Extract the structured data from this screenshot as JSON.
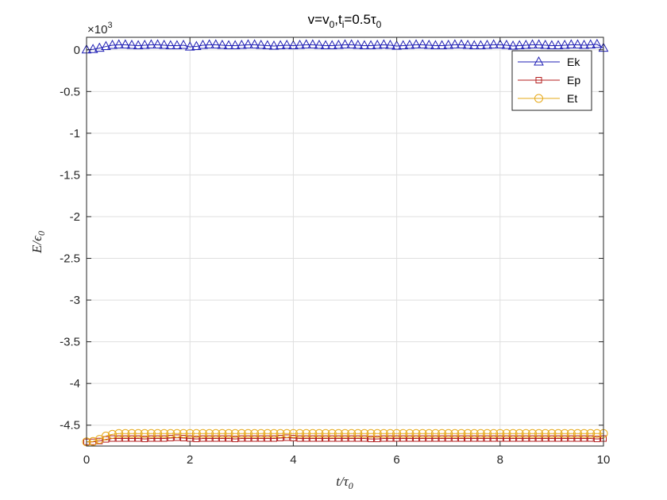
{
  "chart_data": {
    "type": "line",
    "title": {
      "base": "v=v",
      "sub1": "0",
      "mid": ",t",
      "sub2": "i",
      "tail": "=0.5τ",
      "sub3": "0"
    },
    "xlabel": {
      "main": "t/τ",
      "sub": "0"
    },
    "ylabel": {
      "main": "E/ϵ",
      "sub": "0"
    },
    "y_multiplier": {
      "base": "×10",
      "exp": "3"
    },
    "xlim": [
      0,
      10
    ],
    "ylim": [
      -4.75,
      0.15
    ],
    "xticks": [
      0,
      2,
      4,
      6,
      8,
      10
    ],
    "xtick_labels": [
      "0",
      "2",
      "4",
      "6",
      "8",
      "10"
    ],
    "yticks": [
      0,
      -0.5,
      -1,
      -1.5,
      -2,
      -2.5,
      -3,
      -3.5,
      -4,
      -4.5
    ],
    "ytick_labels": [
      "0",
      "-0.5",
      "-1",
      "-1.5",
      "-2",
      "-2.5",
      "-3",
      "-3.5",
      "-4",
      "-4.5"
    ],
    "grid": true,
    "legend_position": "top-right",
    "series": [
      {
        "name": "Ek",
        "color": "#1f1fb4",
        "marker": "triangle",
        "x": [
          0,
          0.125,
          0.25,
          0.375,
          0.5,
          0.625,
          0.75,
          0.875,
          1,
          1.125,
          1.25,
          1.375,
          1.5,
          1.625,
          1.75,
          1.875,
          2,
          2.125,
          2.25,
          2.375,
          2.5,
          2.625,
          2.75,
          2.875,
          3,
          3.125,
          3.25,
          3.375,
          3.5,
          3.625,
          3.75,
          3.875,
          4,
          4.125,
          4.25,
          4.375,
          4.5,
          4.625,
          4.75,
          4.875,
          5,
          5.125,
          5.25,
          5.375,
          5.5,
          5.625,
          5.75,
          5.875,
          6,
          6.125,
          6.25,
          6.375,
          6.5,
          6.625,
          6.75,
          6.875,
          7,
          7.125,
          7.25,
          7.375,
          7.5,
          7.625,
          7.75,
          7.875,
          8,
          8.125,
          8.25,
          8.375,
          8.5,
          8.625,
          8.75,
          8.875,
          9,
          9.125,
          9.25,
          9.375,
          9.5,
          9.625,
          9.75,
          9.875,
          10
        ],
        "y": [
          0,
          0.005,
          0.02,
          0.04,
          0.055,
          0.06,
          0.06,
          0.055,
          0.05,
          0.055,
          0.06,
          0.06,
          0.055,
          0.05,
          0.05,
          0.055,
          0.035,
          0.04,
          0.055,
          0.06,
          0.06,
          0.055,
          0.05,
          0.05,
          0.055,
          0.06,
          0.06,
          0.055,
          0.05,
          0.045,
          0.05,
          0.055,
          0.05,
          0.055,
          0.06,
          0.06,
          0.055,
          0.05,
          0.05,
          0.055,
          0.06,
          0.06,
          0.055,
          0.05,
          0.05,
          0.055,
          0.06,
          0.055,
          0.045,
          0.05,
          0.055,
          0.06,
          0.06,
          0.055,
          0.05,
          0.05,
          0.055,
          0.06,
          0.06,
          0.055,
          0.05,
          0.05,
          0.055,
          0.06,
          0.06,
          0.055,
          0.045,
          0.05,
          0.055,
          0.06,
          0.06,
          0.055,
          0.05,
          0.05,
          0.055,
          0.06,
          0.06,
          0.055,
          0.06,
          0.065,
          0.02
        ]
      },
      {
        "name": "Ep",
        "color": "#b41f1f",
        "marker": "square",
        "x": [
          0,
          0.125,
          0.25,
          0.375,
          0.5,
          0.625,
          0.75,
          0.875,
          1,
          1.125,
          1.25,
          1.375,
          1.5,
          1.625,
          1.75,
          1.875,
          2,
          2.125,
          2.25,
          2.375,
          2.5,
          2.625,
          2.75,
          2.875,
          3,
          3.125,
          3.25,
          3.375,
          3.5,
          3.625,
          3.75,
          3.875,
          4,
          4.125,
          4.25,
          4.375,
          4.5,
          4.625,
          4.75,
          4.875,
          5,
          5.125,
          5.25,
          5.375,
          5.5,
          5.625,
          5.75,
          5.875,
          6,
          6.125,
          6.25,
          6.375,
          6.5,
          6.625,
          6.75,
          6.875,
          7,
          7.125,
          7.25,
          7.375,
          7.5,
          7.625,
          7.75,
          7.875,
          8,
          8.125,
          8.25,
          8.375,
          8.5,
          8.625,
          8.75,
          8.875,
          9,
          9.125,
          9.25,
          9.375,
          9.5,
          9.625,
          9.75,
          9.875,
          10
        ],
        "y": [
          -4.7,
          -4.7,
          -4.69,
          -4.67,
          -4.66,
          -4.66,
          -4.66,
          -4.66,
          -4.66,
          -4.665,
          -4.66,
          -4.66,
          -4.66,
          -4.655,
          -4.65,
          -4.655,
          -4.66,
          -4.665,
          -4.66,
          -4.66,
          -4.66,
          -4.66,
          -4.66,
          -4.665,
          -4.66,
          -4.66,
          -4.66,
          -4.66,
          -4.66,
          -4.66,
          -4.655,
          -4.65,
          -4.655,
          -4.66,
          -4.66,
          -4.66,
          -4.66,
          -4.66,
          -4.66,
          -4.66,
          -4.66,
          -4.66,
          -4.66,
          -4.66,
          -4.665,
          -4.665,
          -4.66,
          -4.66,
          -4.66,
          -4.66,
          -4.66,
          -4.66,
          -4.66,
          -4.66,
          -4.66,
          -4.66,
          -4.66,
          -4.66,
          -4.66,
          -4.66,
          -4.66,
          -4.66,
          -4.66,
          -4.66,
          -4.66,
          -4.66,
          -4.66,
          -4.66,
          -4.66,
          -4.66,
          -4.66,
          -4.66,
          -4.66,
          -4.66,
          -4.66,
          -4.66,
          -4.66,
          -4.66,
          -4.66,
          -4.665,
          -4.66
        ]
      },
      {
        "name": "Et",
        "color": "#e6a817",
        "marker": "circle",
        "x": [
          0,
          0.125,
          0.25,
          0.375,
          0.5,
          0.625,
          0.75,
          0.875,
          1,
          1.125,
          1.25,
          1.375,
          1.5,
          1.625,
          1.75,
          1.875,
          2,
          2.125,
          2.25,
          2.375,
          2.5,
          2.625,
          2.75,
          2.875,
          3,
          3.125,
          3.25,
          3.375,
          3.5,
          3.625,
          3.75,
          3.875,
          4,
          4.125,
          4.25,
          4.375,
          4.5,
          4.625,
          4.75,
          4.875,
          5,
          5.125,
          5.25,
          5.375,
          5.5,
          5.625,
          5.75,
          5.875,
          6,
          6.125,
          6.25,
          6.375,
          6.5,
          6.625,
          6.75,
          6.875,
          7,
          7.125,
          7.25,
          7.375,
          7.5,
          7.625,
          7.75,
          7.875,
          8,
          8.125,
          8.25,
          8.375,
          8.5,
          8.625,
          8.75,
          8.875,
          9,
          9.125,
          9.25,
          9.375,
          9.5,
          9.625,
          9.75,
          9.875,
          10
        ],
        "y": [
          -4.7,
          -4.695,
          -4.67,
          -4.63,
          -4.61,
          -4.6,
          -4.6,
          -4.6,
          -4.6,
          -4.6,
          -4.6,
          -4.6,
          -4.6,
          -4.6,
          -4.6,
          -4.6,
          -4.6,
          -4.6,
          -4.6,
          -4.6,
          -4.6,
          -4.6,
          -4.6,
          -4.6,
          -4.6,
          -4.6,
          -4.6,
          -4.6,
          -4.6,
          -4.6,
          -4.6,
          -4.6,
          -4.6,
          -4.6,
          -4.6,
          -4.6,
          -4.6,
          -4.6,
          -4.6,
          -4.6,
          -4.6,
          -4.6,
          -4.6,
          -4.6,
          -4.6,
          -4.6,
          -4.6,
          -4.6,
          -4.6,
          -4.6,
          -4.6,
          -4.6,
          -4.6,
          -4.6,
          -4.6,
          -4.6,
          -4.6,
          -4.6,
          -4.6,
          -4.6,
          -4.6,
          -4.6,
          -4.6,
          -4.6,
          -4.6,
          -4.6,
          -4.6,
          -4.6,
          -4.6,
          -4.6,
          -4.6,
          -4.6,
          -4.6,
          -4.6,
          -4.6,
          -4.6,
          -4.6,
          -4.6,
          -4.6,
          -4.6,
          -4.6
        ]
      }
    ]
  }
}
